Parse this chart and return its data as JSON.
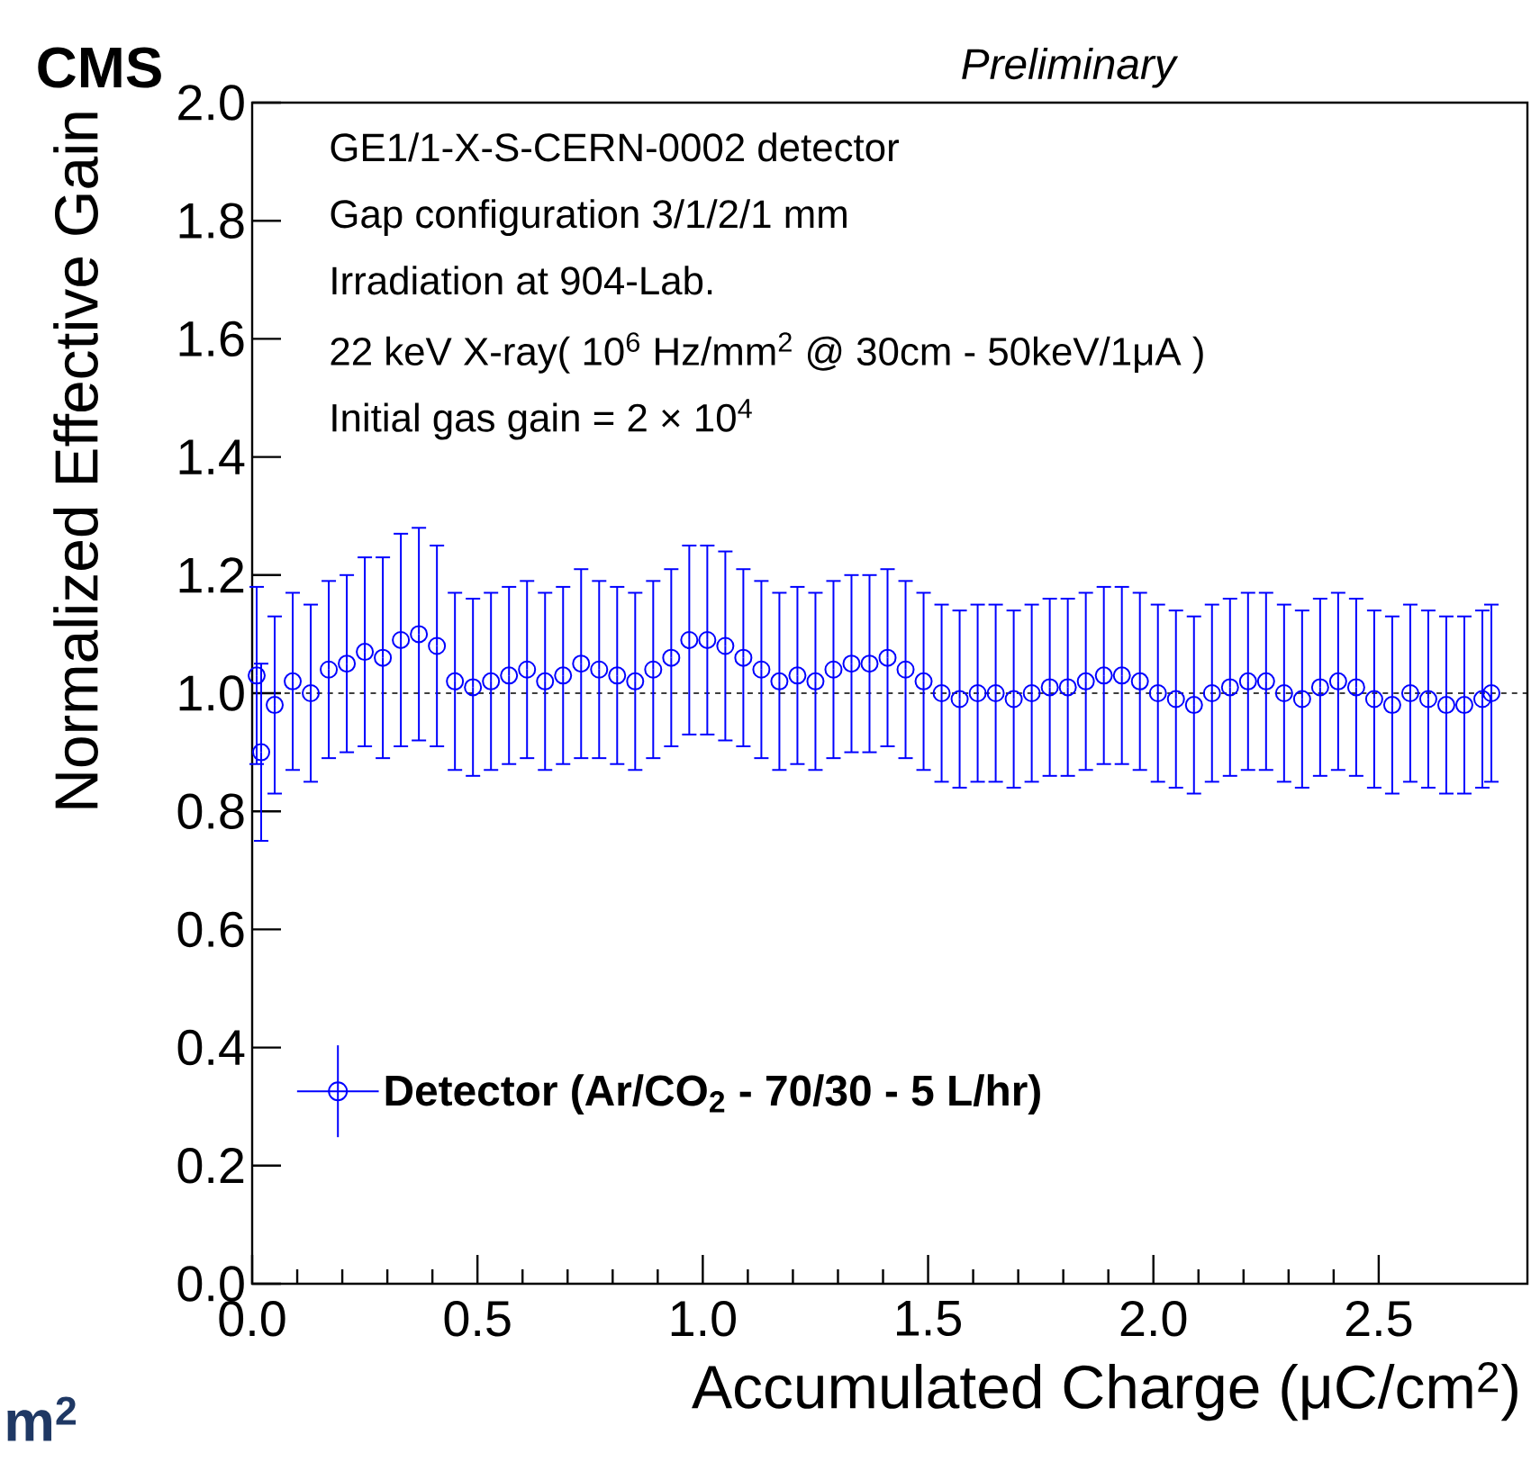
{
  "chart_data": {
    "type": "scatter",
    "title": "CMS",
    "subtitle": "Preliminary",
    "xlabel": "Accumulated Charge (μC/cm$^{2}$)",
    "ylabel": "Normalized Effective Gain",
    "annotations": [
      "GE1/1-X-S-CERN-0002 detector",
      "Gap configuration 3/1/2/1 mm",
      "Irradiation at 904-Lab.",
      "22 keV X-ray( 10$^{6}$ Hz/mm$^{2}$ @ 30cm - 50keV/1μA )",
      "Initial gas gain = 2 × 10$^{4}$",
      "m$^{2}$"
    ],
    "xlim": [
      0,
      2.83
    ],
    "ylim": [
      0,
      2.0
    ],
    "xticks": [
      {
        "value": 0,
        "label": "0.0"
      },
      {
        "value": 0.5,
        "label": "0.5"
      },
      {
        "value": 1.0,
        "label": "1.0"
      },
      {
        "value": 1.5,
        "label": "1.5"
      },
      {
        "value": 2.0,
        "label": "2.0"
      },
      {
        "value": 2.5,
        "label": "2.5"
      }
    ],
    "yticks": [
      {
        "value": 0,
        "label": "0.0"
      },
      {
        "value": 0.2,
        "label": "0.2"
      },
      {
        "value": 0.4,
        "label": "0.4"
      },
      {
        "value": 0.6,
        "label": "0.6"
      },
      {
        "value": 0.8,
        "label": "0.8"
      },
      {
        "value": 1.0,
        "label": "1.0"
      },
      {
        "value": 1.2,
        "label": "1.2"
      },
      {
        "value": 1.4,
        "label": "1.4"
      },
      {
        "value": 1.6,
        "label": "1.6"
      },
      {
        "value": 1.8,
        "label": "1.8"
      },
      {
        "value": 2.0,
        "label": "2.0"
      }
    ],
    "marker": "circle",
    "legend": "bottom left",
    "grid": false,
    "ref_lines": [
      {
        "axis": "y",
        "value": 1.0,
        "label": null,
        "color": "#000000",
        "line_style": "dashed"
      }
    ],
    "series": [
      {
        "name": "Detector (Ar/CO$_{2}$ - 70/30 - 5 L/hr)",
        "color": "#0000ff",
        "x": [
          0.01,
          0.02,
          0.05,
          0.09,
          0.13,
          0.17,
          0.21,
          0.25,
          0.29,
          0.33,
          0.37,
          0.41,
          0.45,
          0.49,
          0.53,
          0.57,
          0.61,
          0.65,
          0.69,
          0.73,
          0.77,
          0.81,
          0.85,
          0.89,
          0.93,
          0.97,
          1.01,
          1.05,
          1.09,
          1.13,
          1.17,
          1.21,
          1.25,
          1.29,
          1.33,
          1.37,
          1.41,
          1.45,
          1.49,
          1.53,
          1.57,
          1.61,
          1.65,
          1.69,
          1.73,
          1.77,
          1.81,
          1.85,
          1.89,
          1.93,
          1.97,
          2.01,
          2.05,
          2.09,
          2.13,
          2.17,
          2.21,
          2.25,
          2.29,
          2.33,
          2.37,
          2.41,
          2.45,
          2.49,
          2.53,
          2.57,
          2.61,
          2.65,
          2.69,
          2.73,
          2.75
        ],
        "values": [
          1.03,
          0.9,
          0.98,
          1.02,
          1.0,
          1.04,
          1.05,
          1.07,
          1.06,
          1.09,
          1.1,
          1.08,
          1.02,
          1.01,
          1.02,
          1.03,
          1.04,
          1.02,
          1.03,
          1.05,
          1.04,
          1.03,
          1.02,
          1.04,
          1.06,
          1.09,
          1.09,
          1.08,
          1.06,
          1.04,
          1.02,
          1.03,
          1.02,
          1.04,
          1.05,
          1.05,
          1.06,
          1.04,
          1.02,
          1.0,
          0.99,
          1.0,
          1.0,
          0.99,
          1.0,
          1.01,
          1.01,
          1.02,
          1.03,
          1.03,
          1.02,
          1.0,
          0.99,
          0.98,
          1.0,
          1.01,
          1.02,
          1.02,
          1.0,
          0.99,
          1.01,
          1.02,
          1.01,
          0.99,
          0.98,
          1.0,
          0.99,
          0.98,
          0.98,
          0.99,
          1.0
        ],
        "errors": [
          0.15,
          0.15,
          0.15,
          0.15,
          0.15,
          0.15,
          0.15,
          0.16,
          0.17,
          0.18,
          0.18,
          0.17,
          0.15,
          0.15,
          0.15,
          0.15,
          0.15,
          0.15,
          0.15,
          0.16,
          0.15,
          0.15,
          0.15,
          0.15,
          0.15,
          0.16,
          0.16,
          0.16,
          0.15,
          0.15,
          0.15,
          0.15,
          0.15,
          0.15,
          0.15,
          0.15,
          0.15,
          0.15,
          0.15,
          0.15,
          0.15,
          0.15,
          0.15,
          0.15,
          0.15,
          0.15,
          0.15,
          0.15,
          0.15,
          0.15,
          0.15,
          0.15,
          0.15,
          0.15,
          0.15,
          0.15,
          0.15,
          0.15,
          0.15,
          0.15,
          0.15,
          0.15,
          0.15,
          0.15,
          0.15,
          0.15,
          0.15,
          0.15,
          0.15,
          0.15,
          0.15
        ]
      }
    ]
  }
}
